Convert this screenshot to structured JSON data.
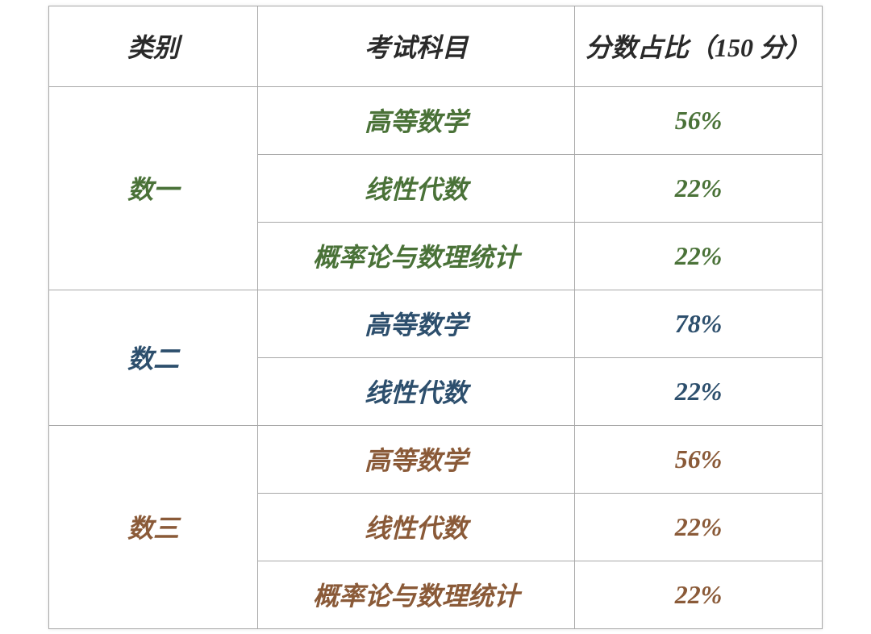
{
  "table": {
    "columns": [
      "类别",
      "考试科目",
      "分数占比（150 分）"
    ],
    "header_color": "#2a2a2a",
    "border_color": "#a8a8a8",
    "background_color": "#ffffff",
    "font_family": "KaiTi",
    "header_fontsize": 32,
    "cell_fontsize": 32,
    "font_weight": "bold",
    "font_style": "italic",
    "col_widths_pct": [
      27,
      41,
      32
    ],
    "groups": [
      {
        "category": "数一",
        "color": "#4a7238",
        "rows": [
          {
            "subject": "高等数学",
            "percent": "56%"
          },
          {
            "subject": "线性代数",
            "percent": "22%"
          },
          {
            "subject": "概率论与数理统计",
            "percent": "22%"
          }
        ]
      },
      {
        "category": "数二",
        "color": "#2d4f6d",
        "rows": [
          {
            "subject": "高等数学",
            "percent": "78%"
          },
          {
            "subject": "线性代数",
            "percent": "22%"
          }
        ]
      },
      {
        "category": "数三",
        "color": "#8a5a38",
        "rows": [
          {
            "subject": "高等数学",
            "percent": "56%"
          },
          {
            "subject": "线性代数",
            "percent": "22%"
          },
          {
            "subject": "概率论与数理统计",
            "percent": "22%"
          }
        ]
      }
    ]
  }
}
